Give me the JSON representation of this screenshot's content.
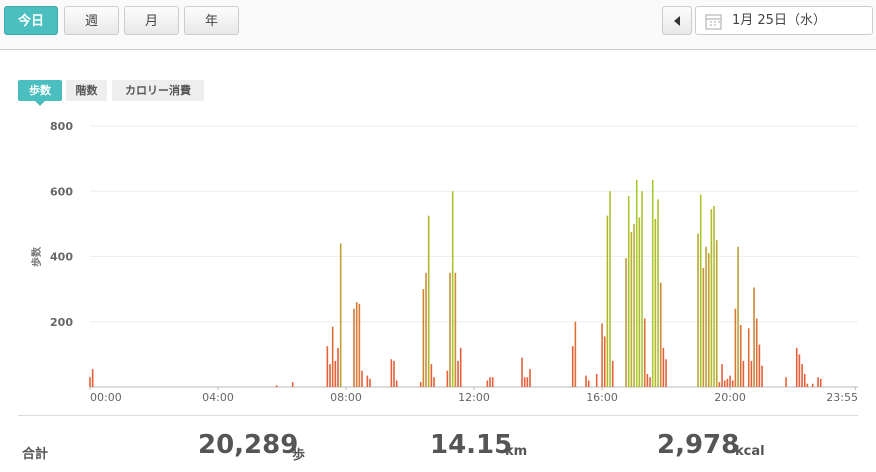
{
  "tabs": [
    "今日",
    "週",
    "月",
    "年"
  ],
  "date": "1月 25日（水）",
  "metric_tabs": [
    "歩数",
    "階数",
    "カロリー消費"
  ],
  "chart_data": {
    "type": "bar",
    "y_label": "歩数",
    "x": [
      0,
      5,
      350,
      380,
      445,
      450,
      455,
      460,
      465,
      470,
      495,
      500,
      505,
      510,
      520,
      525,
      565,
      570,
      575,
      620,
      625,
      630,
      635,
      640,
      645,
      670,
      675,
      680,
      685,
      690,
      695,
      745,
      750,
      755,
      810,
      815,
      820,
      825,
      905,
      910,
      930,
      935,
      950,
      960,
      965,
      970,
      975,
      980,
      1005,
      1010,
      1015,
      1020,
      1025,
      1030,
      1035,
      1040,
      1045,
      1050,
      1055,
      1060,
      1065,
      1070,
      1075,
      1080,
      1140,
      1145,
      1150,
      1155,
      1160,
      1165,
      1170,
      1175,
      1180,
      1185,
      1190,
      1195,
      1200,
      1205,
      1210,
      1215,
      1220,
      1225,
      1235,
      1240,
      1245,
      1250,
      1255,
      1260,
      1305,
      1325,
      1330,
      1335,
      1340,
      1345,
      1355,
      1365,
      1370
    ],
    "values": [
      30,
      55,
      5,
      15,
      125,
      70,
      185,
      80,
      120,
      440,
      240,
      260,
      255,
      50,
      35,
      25,
      85,
      80,
      20,
      15,
      300,
      350,
      525,
      70,
      30,
      50,
      350,
      600,
      350,
      80,
      120,
      20,
      30,
      30,
      90,
      30,
      30,
      55,
      125,
      200,
      35,
      20,
      40,
      195,
      155,
      525,
      600,
      80,
      395,
      585,
      475,
      500,
      635,
      520,
      600,
      210,
      40,
      30,
      635,
      515,
      575,
      320,
      120,
      85,
      470,
      590,
      365,
      430,
      410,
      545,
      555,
      450,
      15,
      70,
      20,
      25,
      35,
      20,
      240,
      430,
      190,
      80,
      180,
      80,
      305,
      210,
      130,
      65,
      30,
      120,
      100,
      70,
      40,
      10,
      10,
      30,
      25
    ],
    "xlim": [
      0,
      1435
    ],
    "xticks": [
      {
        "value": 0,
        "label": "00:00"
      },
      {
        "value": 240,
        "label": "04:00"
      },
      {
        "value": 480,
        "label": "08:00"
      },
      {
        "value": 720,
        "label": "12:00"
      },
      {
        "value": 960,
        "label": "16:00"
      },
      {
        "value": 1200,
        "label": "20:00"
      },
      {
        "value": 1435,
        "label": "23:55"
      }
    ],
    "ylim": [
      0,
      800
    ],
    "yticks": [
      200,
      400,
      600,
      800
    ],
    "grid": true,
    "color_low": "#e4603a",
    "color_high": "#a6cc2c"
  },
  "summary": {
    "label": "合計",
    "items": [
      {
        "value": "20,289",
        "unit": "歩"
      },
      {
        "value": "14.15",
        "unit": "km"
      },
      {
        "value": "2,978",
        "unit": "kcal"
      }
    ]
  }
}
